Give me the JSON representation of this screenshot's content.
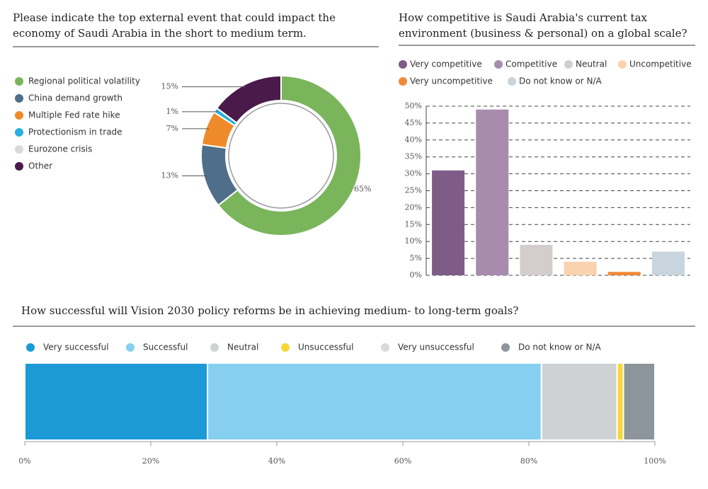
{
  "chart_data": [
    {
      "type": "donut",
      "title": "Please indicate the top external event that could impact the economy of Saudi Arabia in the short to medium term.",
      "categories": [
        "Regional political volatility",
        "China demand growth",
        "Multiple Fed rate hike",
        "Protectionism in trade",
        "Eurozone crisis",
        "Other"
      ],
      "values": [
        65,
        13,
        7,
        1,
        0,
        15
      ],
      "value_labels": [
        "65%",
        "13%",
        "7%",
        "1%",
        null,
        "15%"
      ],
      "colors": [
        "#7ab55c",
        "#4f6e8a",
        "#ef8a2a",
        "#29aee0",
        "#d9d9d9",
        "#4a1a4a"
      ]
    },
    {
      "type": "bar",
      "title": "How competitive is Saudi Arabia's current tax environment (business & personal) on a global scale?",
      "categories": [
        "Very competitive",
        "Competitive",
        "Neutral",
        "Uncompetitive",
        "Very uncompetitive",
        "Do not know or N/A"
      ],
      "values": [
        31,
        49,
        9,
        4,
        1,
        7
      ],
      "colors": [
        "#7f5b87",
        "#a88cae",
        "#d3cdcb",
        "#f9d2b0",
        "#ef8a3a",
        "#c8d4de"
      ],
      "ylim": [
        0,
        50
      ],
      "yticks": [
        {
          "value": 0,
          "label": "0%"
        },
        {
          "value": 5,
          "label": "5%"
        },
        {
          "value": 10,
          "label": "10%"
        },
        {
          "value": 15,
          "label": "15%"
        },
        {
          "value": 20,
          "label": "20%"
        },
        {
          "value": 25,
          "label": "25%"
        },
        {
          "value": 30,
          "label": "30%"
        },
        {
          "value": 35,
          "label": "35%"
        },
        {
          "value": 40,
          "label": "40%"
        },
        {
          "value": 45,
          "label": "45%"
        },
        {
          "value": 50,
          "label": "50%"
        }
      ],
      "grid": true
    },
    {
      "type": "stacked-bar",
      "title": "How successful will Vision 2030 policy reforms be in achieving medium- to long-term goals?",
      "series": [
        {
          "name": "Very successful",
          "color": "#1b9ad6",
          "values": [
            29
          ]
        },
        {
          "name": "Successful",
          "color": "#86cff0",
          "values": [
            53
          ]
        },
        {
          "name": "Neutral",
          "color": "#cfd2d4",
          "values": [
            12
          ]
        },
        {
          "name": "Unsuccessful",
          "color": "#f7d63a",
          "values": [
            1
          ]
        },
        {
          "name": "Very unsuccessful",
          "color": "#d9d9d9",
          "values": [
            0
          ]
        },
        {
          "name": "Do not know or N/A",
          "color": "#8d959c",
          "values": [
            5
          ]
        }
      ],
      "xlim": [
        0,
        100
      ],
      "xticks": [
        {
          "value": 0,
          "label": "0%"
        },
        {
          "value": 20,
          "label": "20%"
        },
        {
          "value": 40,
          "label": "40%"
        },
        {
          "value": 60,
          "label": "60%"
        },
        {
          "value": 80,
          "label": "80%"
        },
        {
          "value": 100,
          "label": "100%"
        }
      ]
    }
  ]
}
